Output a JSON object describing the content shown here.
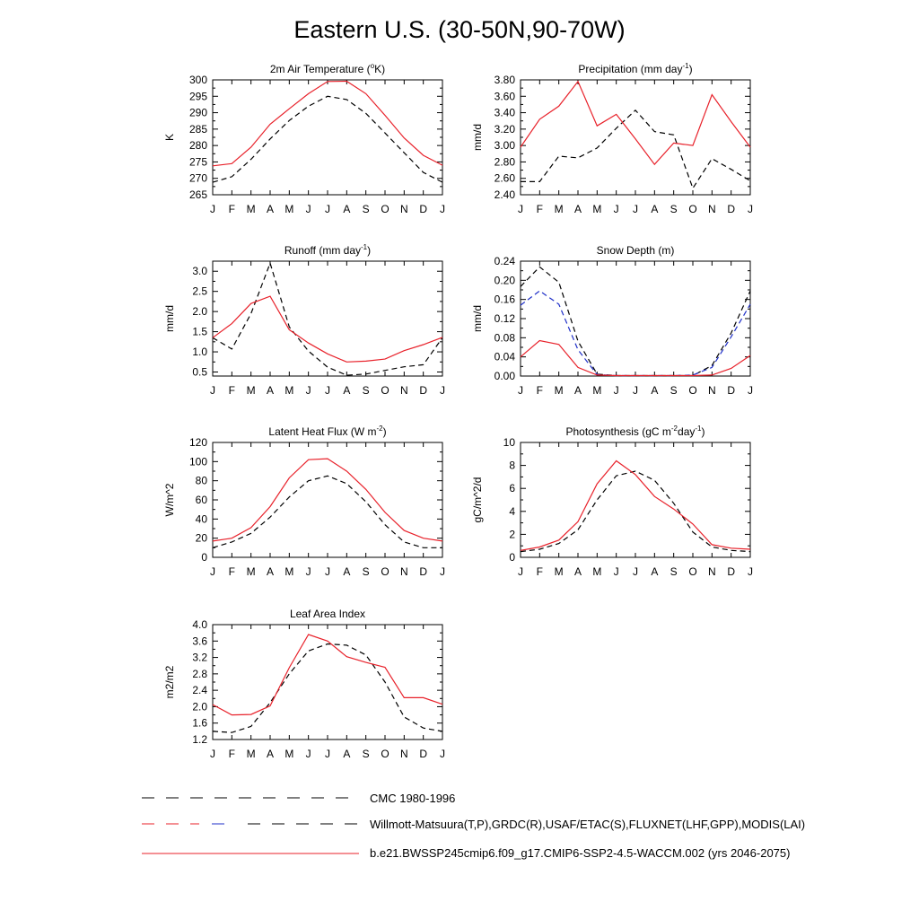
{
  "title": "Eastern U.S. (30-50N,90-70W)",
  "months": [
    "J",
    "F",
    "M",
    "A",
    "M",
    "J",
    "J",
    "A",
    "S",
    "O",
    "N",
    "D",
    "J"
  ],
  "colors": {
    "model": "#e8212a",
    "obs": "#000000",
    "obs_blue": "#1f2fc8"
  },
  "legend": [
    {
      "label": "CMC 1980-1996",
      "style": "dashed-black"
    },
    {
      "label": "Willmott-Matsuura(T,P),GRDC(R),USAF/ETAC(S),FLUXNET(LHF,GPP),MODIS(LAI)",
      "style": "dashed-mixed"
    },
    {
      "label": "b.e21.BWSSP245cmip6.f09_g17.CMIP6-SSP2-4.5-WACCM.002 (yrs 2046-2075)",
      "style": "solid-red"
    }
  ],
  "chart_data": [
    {
      "type": "line",
      "title": "2m Air Temperature (",
      "title_sup": "o",
      "title_after": "K)",
      "ylabel": "K",
      "ylim": [
        265,
        300
      ],
      "yticks": [
        265,
        270,
        275,
        280,
        285,
        290,
        295,
        300
      ],
      "ytick_labels": [
        "265",
        "270",
        "275",
        "280",
        "285",
        "290",
        "295",
        "300"
      ],
      "categories": [
        "J",
        "F",
        "M",
        "A",
        "M",
        "J",
        "J",
        "A",
        "S",
        "O",
        "N",
        "D",
        "J"
      ],
      "series": [
        {
          "name": "model",
          "style": "solid",
          "color": "#e8212a",
          "values": [
            273.8,
            274.5,
            279.5,
            286.5,
            291.2,
            295.8,
            299.5,
            299.6,
            295.8,
            289.2,
            282.3,
            277.0,
            274.0
          ]
        },
        {
          "name": "observation",
          "style": "dashed",
          "color": "#000000",
          "values": [
            268.8,
            270.5,
            275.8,
            282.0,
            287.6,
            292.0,
            295.0,
            294.0,
            289.8,
            283.8,
            277.8,
            271.8,
            268.8
          ]
        }
      ]
    },
    {
      "type": "line",
      "title": "Precipitation (mm day",
      "title_sup": "-1",
      "title_after": ")",
      "ylabel": "mm/d",
      "ylim": [
        2.4,
        3.8
      ],
      "yticks": [
        2.4,
        2.6,
        2.8,
        3.0,
        3.2,
        3.4,
        3.6,
        3.8
      ],
      "ytick_labels": [
        "2.40",
        "2.60",
        "2.80",
        "3.00",
        "3.20",
        "3.40",
        "3.60",
        "3.80"
      ],
      "categories": [
        "J",
        "F",
        "M",
        "A",
        "M",
        "J",
        "J",
        "A",
        "S",
        "O",
        "N",
        "D",
        "J"
      ],
      "series": [
        {
          "name": "model",
          "style": "solid",
          "color": "#e8212a",
          "values": [
            2.98,
            3.32,
            3.48,
            3.78,
            3.24,
            3.38,
            3.08,
            2.77,
            3.03,
            3.0,
            3.62,
            3.29,
            2.98
          ]
        },
        {
          "name": "observation",
          "style": "dashed",
          "color": "#000000",
          "values": [
            2.56,
            2.56,
            2.87,
            2.85,
            2.97,
            3.21,
            3.43,
            3.17,
            3.13,
            2.48,
            2.84,
            2.71,
            2.57
          ]
        }
      ]
    },
    {
      "type": "line",
      "title": "Runoff (mm day",
      "title_sup": "-1",
      "title_after": ")",
      "ylabel": "mm/d",
      "ylim": [
        0.4,
        3.25
      ],
      "yticks": [
        0.5,
        1.0,
        1.5,
        2.0,
        2.5,
        3.0
      ],
      "ytick_labels": [
        "0.5",
        "1.0",
        "1.5",
        "2.0",
        "2.5",
        "3.0"
      ],
      "categories": [
        "J",
        "F",
        "M",
        "A",
        "M",
        "J",
        "J",
        "A",
        "S",
        "O",
        "N",
        "D",
        "J"
      ],
      "series": [
        {
          "name": "model",
          "style": "solid",
          "color": "#e8212a",
          "values": [
            1.35,
            1.7,
            2.2,
            2.38,
            1.55,
            1.22,
            0.95,
            0.75,
            0.77,
            0.82,
            1.03,
            1.18,
            1.36
          ]
        },
        {
          "name": "observation",
          "style": "dashed",
          "color": "#000000",
          "values": [
            1.35,
            1.07,
            1.95,
            3.2,
            1.62,
            1.02,
            0.62,
            0.42,
            0.45,
            0.54,
            0.63,
            0.68,
            1.35
          ]
        }
      ]
    },
    {
      "type": "line",
      "title": "Snow Depth (m)",
      "title_sup": "",
      "title_after": "",
      "ylabel": "mm/d",
      "ylim": [
        0,
        0.24
      ],
      "yticks": [
        0,
        0.04,
        0.08,
        0.12,
        0.16,
        0.2,
        0.24
      ],
      "ytick_labels": [
        "0.00",
        "0.04",
        "0.08",
        "0.12",
        "0.16",
        "0.20",
        "0.24"
      ],
      "categories": [
        "J",
        "F",
        "M",
        "A",
        "M",
        "J",
        "J",
        "A",
        "S",
        "O",
        "N",
        "D",
        "J"
      ],
      "series": [
        {
          "name": "model",
          "style": "solid",
          "color": "#e8212a",
          "values": [
            0.04,
            0.074,
            0.066,
            0.018,
            0.002,
            0.001,
            0.001,
            0.001,
            0.001,
            0.001,
            0.002,
            0.016,
            0.043
          ]
        },
        {
          "name": "CMC",
          "style": "dashed",
          "color": "#000000",
          "values": [
            0.187,
            0.228,
            0.196,
            0.073,
            0.004,
            0.001,
            0.001,
            0.001,
            0.001,
            0.001,
            0.022,
            0.09,
            0.178
          ]
        },
        {
          "name": "USAF/ETAC",
          "style": "dashed",
          "color": "#1f2fc8",
          "values": [
            0.148,
            0.178,
            0.15,
            0.055,
            0.003,
            0.001,
            0.001,
            0.001,
            0.001,
            0.002,
            0.018,
            0.082,
            0.15
          ]
        }
      ]
    },
    {
      "type": "line",
      "title": "Latent Heat Flux (W m",
      "title_sup": "-2",
      "title_after": ")",
      "ylabel": "W/m^2",
      "ylim": [
        0,
        120
      ],
      "yticks": [
        0,
        20,
        40,
        60,
        80,
        100,
        120
      ],
      "ytick_labels": [
        "0",
        "20",
        "40",
        "60",
        "80",
        "100",
        "120"
      ],
      "categories": [
        "J",
        "F",
        "M",
        "A",
        "M",
        "J",
        "J",
        "A",
        "S",
        "O",
        "N",
        "D",
        "J"
      ],
      "series": [
        {
          "name": "model",
          "style": "solid",
          "color": "#e8212a",
          "values": [
            17,
            20,
            31,
            53,
            83,
            102,
            103,
            90,
            71,
            47,
            28,
            20,
            17
          ]
        },
        {
          "name": "observation",
          "style": "dashed",
          "color": "#000000",
          "values": [
            10,
            16,
            25,
            42,
            63,
            80,
            85,
            77,
            58,
            34,
            16,
            10,
            10
          ]
        }
      ]
    },
    {
      "type": "line",
      "title": "Photosynthesis (gC m",
      "title_sup": "-2",
      "title_after": "day",
      "title_sup2": "-1",
      "title_end": ")",
      "ylabel": "gC/m^2/d",
      "ylim": [
        0,
        10
      ],
      "yticks": [
        0,
        2,
        4,
        6,
        8,
        10
      ],
      "ytick_labels": [
        "0",
        "2",
        "4",
        "6",
        "8",
        "10"
      ],
      "categories": [
        "J",
        "F",
        "M",
        "A",
        "M",
        "J",
        "J",
        "A",
        "S",
        "O",
        "N",
        "D",
        "J"
      ],
      "series": [
        {
          "name": "model",
          "style": "solid",
          "color": "#e8212a",
          "values": [
            0.6,
            0.9,
            1.5,
            3.1,
            6.4,
            8.4,
            7.2,
            5.3,
            4.2,
            2.9,
            1.1,
            0.8,
            0.7
          ]
        },
        {
          "name": "observation",
          "style": "dashed",
          "color": "#000000",
          "values": [
            0.5,
            0.7,
            1.2,
            2.4,
            5.0,
            7.1,
            7.5,
            6.7,
            4.7,
            2.2,
            0.9,
            0.6,
            0.5
          ]
        }
      ]
    },
    {
      "type": "line",
      "title": "Leaf Area Index",
      "title_sup": "",
      "title_after": "",
      "ylabel": "m2/m2",
      "ylim": [
        1.2,
        4.0
      ],
      "yticks": [
        1.2,
        1.6,
        2.0,
        2.4,
        2.8,
        3.2,
        3.6,
        4.0
      ],
      "ytick_labels": [
        "1.2",
        "1.6",
        "2.0",
        "2.4",
        "2.8",
        "3.2",
        "3.6",
        "4.0"
      ],
      "categories": [
        "J",
        "F",
        "M",
        "A",
        "M",
        "J",
        "J",
        "A",
        "S",
        "O",
        "N",
        "D",
        "J"
      ],
      "series": [
        {
          "name": "model",
          "style": "solid",
          "color": "#e8212a",
          "values": [
            2.05,
            1.8,
            1.81,
            2.02,
            2.95,
            3.76,
            3.6,
            3.22,
            3.08,
            2.96,
            2.22,
            2.22,
            2.06
          ]
        },
        {
          "name": "observation",
          "style": "dashed",
          "color": "#000000",
          "values": [
            1.4,
            1.37,
            1.52,
            2.1,
            2.8,
            3.36,
            3.53,
            3.5,
            3.26,
            2.6,
            1.75,
            1.48,
            1.4
          ]
        }
      ]
    }
  ]
}
